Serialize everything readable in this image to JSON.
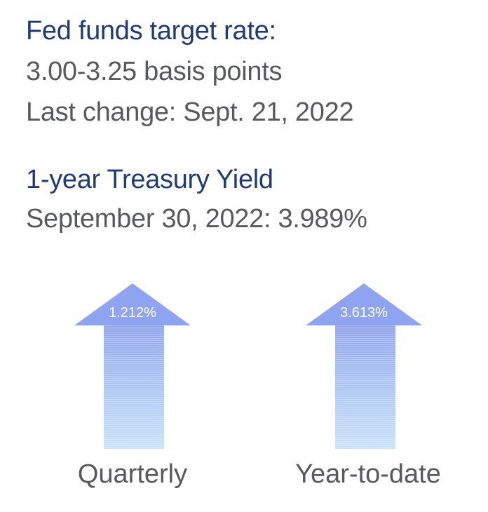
{
  "fed_funds": {
    "title": "Fed funds target rate:",
    "rate": "3.00-3.25 basis points",
    "last_change": "Last change: Sept. 21, 2022"
  },
  "treasury": {
    "title": "1-year Treasury Yield",
    "value_line": "September 30, 2022: 3.989%"
  },
  "arrows": [
    {
      "value": "1.212%",
      "label": "Quarterly",
      "direction": "up"
    },
    {
      "value": "3.613%",
      "label": "Year-to-date",
      "direction": "up"
    }
  ],
  "colors": {
    "title_blue": "#1f3a7a",
    "text_gray": "#58595b",
    "arrow_top": "#8fa4f0",
    "arrow_bottom": "#c7e2fc"
  }
}
